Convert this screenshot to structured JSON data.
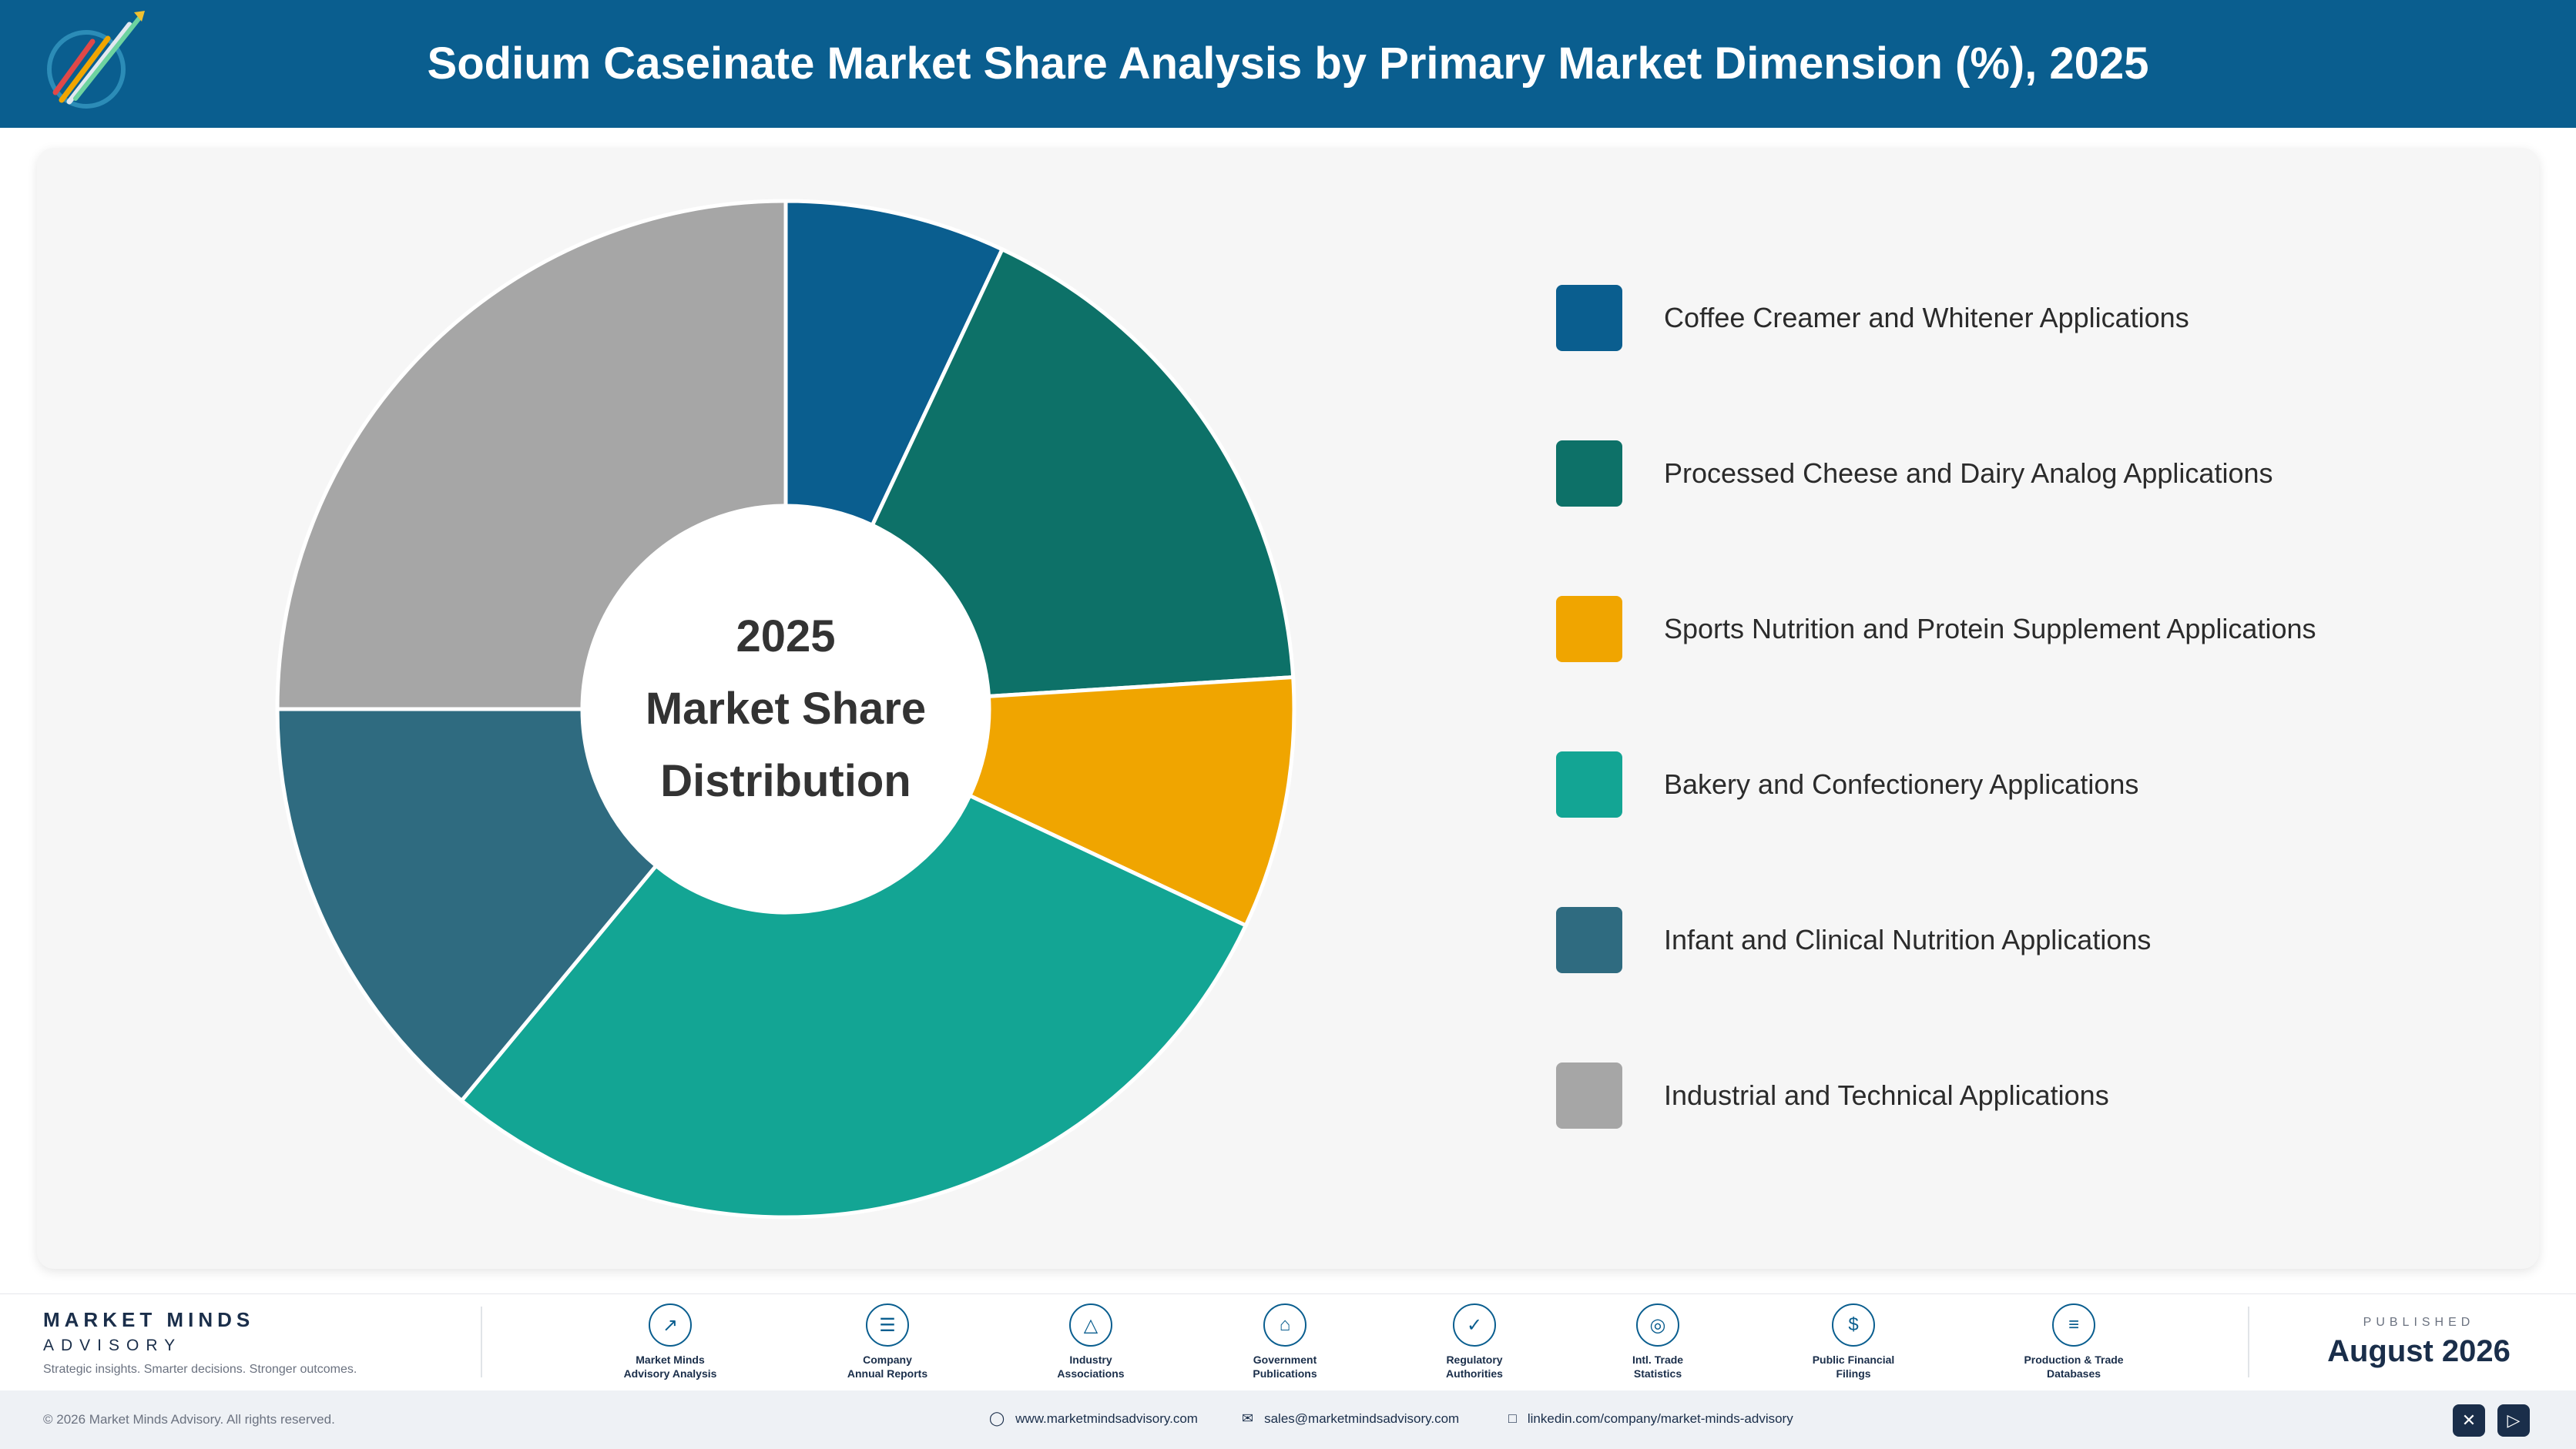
{
  "header": {
    "title": "Sodium Caseinate Market Share Analysis by Primary Market Dimension (%), 2025"
  },
  "chart_center": {
    "line1": "2025",
    "line2": "Market Share",
    "line3": "Distribution"
  },
  "chart_data": {
    "type": "pie",
    "variant": "donut",
    "categories": [
      "Coffee Creamer and Whitener Applications",
      "Processed Cheese and Dairy Analog Applications",
      "Sports Nutrition and Protein Supplement Applications",
      "Bakery and Confectionery Applications",
      "Infant and Clinical Nutrition Applications",
      "Industrial and Technical Applications"
    ],
    "values": [
      7.0,
      17.0,
      8.0,
      29.0,
      14.0,
      25.0
    ],
    "colors": [
      "#0a5e8f",
      "#0d7168",
      "#f0a500",
      "#13a594",
      "#2f6b80",
      "#a6a6a6"
    ],
    "legend_position": "right",
    "start_angle_deg": 0,
    "direction": "clockwise"
  },
  "footer": {
    "brand_name": "MARKET MINDS",
    "brand_sub": "ADVISORY",
    "brand_tag": "Strategic insights. Smarter decisions. Stronger outcomes.",
    "sources": [
      {
        "icon": "trend-chart-icon",
        "line1": "Market Minds",
        "line2": "Advisory Analysis"
      },
      {
        "icon": "document-icon",
        "line1": "Company",
        "line2": "Annual Reports"
      },
      {
        "icon": "network-icon",
        "line1": "Industry",
        "line2": "Associations"
      },
      {
        "icon": "government-building-icon",
        "line1": "Government",
        "line2": "Publications"
      },
      {
        "icon": "shield-icon",
        "line1": "Regulatory",
        "line2": "Authorities"
      },
      {
        "icon": "globe-icon",
        "line1": "Intl. Trade",
        "line2": "Statistics"
      },
      {
        "icon": "dollar-icon",
        "line1": "Public Financial",
        "line2": "Filings"
      },
      {
        "icon": "database-icon",
        "line1": "Production & Trade",
        "line2": "Databases"
      }
    ],
    "published_label": "PUBLISHED",
    "published_date": "August 2026"
  },
  "bottom_bar": {
    "copyright": "© 2026 Market Minds Advisory. All rights reserved.",
    "website": "www.marketmindsadvisory.com",
    "email": "sales@marketmindsadvisory.com",
    "linkedin": "linkedin.com/company/market-minds-advisory"
  }
}
